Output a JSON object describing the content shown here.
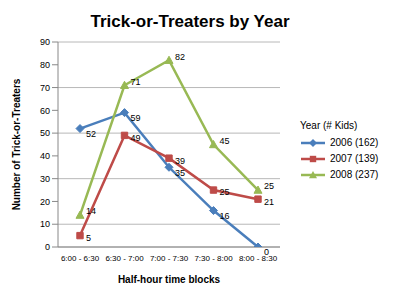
{
  "chart_data": {
    "type": "line",
    "title": "Trick-or-Treaters by Year",
    "x_label": "Half-hour time blocks",
    "y_label": "Number of Trick-or-Treaters",
    "legend_title": "Year (# Kids)",
    "categories": [
      "6:00 - 6:30",
      "6:30 - 7:00",
      "7:00 - 7:30",
      "7:30 - 8:00",
      "8:00 - 8:30"
    ],
    "series": [
      {
        "name": "2006 (162)",
        "color": "#4a7ebb",
        "marker": "diamond",
        "values": [
          52,
          59,
          35,
          16,
          0
        ]
      },
      {
        "name": "2007 (139)",
        "color": "#be4b48",
        "marker": "square",
        "values": [
          5,
          49,
          39,
          25,
          21
        ]
      },
      {
        "name": "2008 (237)",
        "color": "#98b954",
        "marker": "triangle",
        "values": [
          14,
          71,
          82,
          45,
          25
        ]
      }
    ],
    "ylim": [
      0,
      90
    ],
    "yticks": [
      0,
      10,
      20,
      30,
      40,
      50,
      60,
      70,
      80,
      90
    ],
    "grid": true,
    "legend": "right",
    "data_labels": true
  }
}
